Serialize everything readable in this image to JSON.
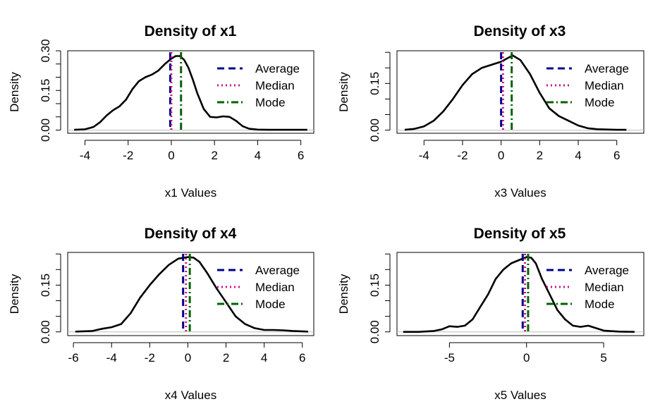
{
  "colors": {
    "curve": "#000000",
    "baseline": "#bebebe",
    "average": "#00008b",
    "median": "#c71585",
    "mode": "#006400"
  },
  "legend_labels": {
    "average": "Average",
    "median": "Median",
    "mode": "Mode"
  },
  "chart_data": [
    {
      "type": "line",
      "title": "Density of x1",
      "xlabel": "x1 Values",
      "ylabel": "Density",
      "xlim": [
        -4.8,
        6.6
      ],
      "ylim": [
        -0.012,
        0.3
      ],
      "xticks": [
        -4,
        -2,
        0,
        2,
        4,
        6
      ],
      "yticks": [
        0.0,
        0.05,
        0.1,
        0.15,
        0.2,
        0.25,
        0.3
      ],
      "ytick_labels": {
        "0": "0.00",
        "0.15": "0.15",
        "0.3": "0.30"
      },
      "legend": "top-right",
      "lines": {
        "average": -0.05,
        "median": 0.0,
        "mode": 0.45
      },
      "curve": {
        "x": [
          -4.5,
          -4.0,
          -3.6,
          -3.3,
          -3.0,
          -2.7,
          -2.4,
          -2.1,
          -1.8,
          -1.5,
          -1.2,
          -0.9,
          -0.6,
          -0.3,
          0.0,
          0.2,
          0.4,
          0.6,
          0.8,
          1.0,
          1.2,
          1.5,
          1.8,
          2.1,
          2.4,
          2.7,
          3.0,
          3.3,
          3.6,
          4.0,
          4.5,
          5.0,
          5.5,
          6.0,
          6.3
        ],
        "y": [
          0.001,
          0.003,
          0.012,
          0.03,
          0.055,
          0.075,
          0.09,
          0.115,
          0.155,
          0.185,
          0.2,
          0.21,
          0.225,
          0.25,
          0.27,
          0.28,
          0.28,
          0.265,
          0.235,
          0.19,
          0.14,
          0.08,
          0.05,
          0.048,
          0.052,
          0.05,
          0.035,
          0.015,
          0.005,
          0.002,
          0.001,
          0.001,
          0.001,
          0.001,
          0.001
        ]
      }
    },
    {
      "type": "line",
      "title": "Density of x3",
      "xlabel": "x3 Values",
      "ylabel": "Density",
      "xlim": [
        -5.4,
        7.4
      ],
      "ylim": [
        -0.01,
        0.255
      ],
      "xticks": [
        -4,
        -2,
        0,
        2,
        4,
        6
      ],
      "yticks": [
        0.0,
        0.05,
        0.1,
        0.15,
        0.2,
        0.25
      ],
      "ytick_labels": {
        "0": "0.00",
        "0.15": "0.15"
      },
      "legend": "top-right",
      "lines": {
        "average": 0.0,
        "median": 0.1,
        "mode": 0.55
      },
      "curve": {
        "x": [
          -5.0,
          -4.5,
          -4.0,
          -3.5,
          -3.0,
          -2.5,
          -2.0,
          -1.5,
          -1.0,
          -0.5,
          0.0,
          0.3,
          0.6,
          1.0,
          1.5,
          2.0,
          2.5,
          3.0,
          3.5,
          4.0,
          4.5,
          5.0,
          5.5,
          6.0,
          6.5
        ],
        "y": [
          0.001,
          0.004,
          0.012,
          0.03,
          0.06,
          0.1,
          0.145,
          0.18,
          0.2,
          0.21,
          0.22,
          0.23,
          0.24,
          0.225,
          0.18,
          0.12,
          0.07,
          0.045,
          0.03,
          0.015,
          0.006,
          0.003,
          0.002,
          0.001,
          0.001
        ]
      }
    },
    {
      "type": "line",
      "title": "Density of x4",
      "xlabel": "x4 Values",
      "ylabel": "Density",
      "xlim": [
        -6.3,
        6.6
      ],
      "ylim": [
        -0.012,
        0.255
      ],
      "xticks": [
        -6,
        -4,
        -2,
        0,
        2,
        4,
        6
      ],
      "yticks": [
        0.0,
        0.05,
        0.1,
        0.15,
        0.2,
        0.25
      ],
      "ytick_labels": {
        "0": "0.00",
        "0.15": "0.15"
      },
      "legend": "top-right",
      "lines": {
        "average": -0.25,
        "median": -0.1,
        "mode": 0.1
      },
      "curve": {
        "x": [
          -5.9,
          -5.0,
          -4.5,
          -4.0,
          -3.5,
          -3.0,
          -2.5,
          -2.0,
          -1.5,
          -1.0,
          -0.5,
          0.0,
          0.3,
          0.6,
          1.0,
          1.5,
          2.0,
          2.5,
          3.0,
          3.5,
          4.0,
          4.5,
          5.0,
          5.5,
          6.3
        ],
        "y": [
          0.001,
          0.003,
          0.01,
          0.015,
          0.025,
          0.06,
          0.11,
          0.15,
          0.185,
          0.215,
          0.235,
          0.24,
          0.238,
          0.225,
          0.19,
          0.14,
          0.095,
          0.05,
          0.025,
          0.012,
          0.006,
          0.006,
          0.005,
          0.003,
          0.001
        ]
      }
    },
    {
      "type": "line",
      "title": "Density of x5",
      "xlabel": "x5 Values",
      "ylabel": "Density",
      "xlim": [
        -8.4,
        7.6
      ],
      "ylim": [
        -0.012,
        0.255
      ],
      "xticks": [
        -5,
        0,
        5
      ],
      "yticks": [
        0.0,
        0.05,
        0.1,
        0.15,
        0.2,
        0.25
      ],
      "ytick_labels": {
        "0": "0.00",
        "0.15": "0.15"
      },
      "legend": "top-right",
      "lines": {
        "average": -0.25,
        "median": -0.1,
        "mode": 0.1
      },
      "curve": {
        "x": [
          -8.0,
          -7.0,
          -6.0,
          -5.5,
          -5.0,
          -4.5,
          -4.0,
          -3.5,
          -3.0,
          -2.5,
          -2.0,
          -1.5,
          -1.0,
          -0.5,
          0.0,
          0.3,
          0.6,
          1.0,
          1.5,
          2.0,
          2.5,
          3.0,
          3.5,
          4.0,
          4.5,
          5.0,
          6.0,
          7.0
        ],
        "y": [
          0.0,
          0.0,
          0.003,
          0.008,
          0.018,
          0.016,
          0.02,
          0.04,
          0.08,
          0.12,
          0.17,
          0.2,
          0.22,
          0.23,
          0.24,
          0.238,
          0.22,
          0.17,
          0.12,
          0.07,
          0.04,
          0.02,
          0.016,
          0.02,
          0.012,
          0.004,
          0.001,
          0.0
        ]
      }
    }
  ]
}
